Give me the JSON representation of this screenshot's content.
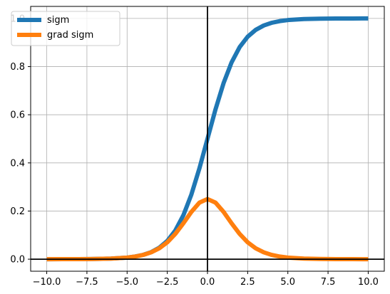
{
  "chart_data": {
    "type": "line",
    "title": "",
    "xlabel": "",
    "ylabel": "",
    "xlim": [
      -11,
      11
    ],
    "ylim": [
      -0.05,
      1.05
    ],
    "grid": true,
    "legend_position": "top-left",
    "x_ticks": [
      -10.0,
      -7.5,
      -5.0,
      -2.5,
      0.0,
      2.5,
      5.0,
      7.5,
      10.0
    ],
    "x_tick_labels": [
      "−10.0",
      "−7.5",
      "−5.0",
      "−2.5",
      "0.0",
      "2.5",
      "5.0",
      "7.5",
      "10.0"
    ],
    "y_ticks": [
      0.0,
      0.2,
      0.4,
      0.6,
      0.8,
      1.0
    ],
    "y_tick_labels": [
      "0.0",
      "0.2",
      "0.4",
      "0.6",
      "0.8",
      "1.0"
    ],
    "reference_lines": {
      "vertical_x": 0,
      "horizontal_y": 0,
      "color": "#000000"
    },
    "x": [
      -10.0,
      -9.0,
      -8.0,
      -7.0,
      -6.0,
      -5.0,
      -4.5,
      -4.0,
      -3.5,
      -3.0,
      -2.5,
      -2.0,
      -1.5,
      -1.0,
      -0.5,
      0.0,
      0.5,
      1.0,
      1.5,
      2.0,
      2.5,
      3.0,
      3.5,
      4.0,
      4.5,
      5.0,
      6.0,
      7.0,
      8.0,
      9.0,
      10.0
    ],
    "series": [
      {
        "name": "sigm",
        "color": "#1f77b4",
        "values": [
          0.0,
          0.0001,
          0.0003,
          0.0009,
          0.0025,
          0.0067,
          0.011,
          0.018,
          0.0293,
          0.0474,
          0.0759,
          0.1192,
          0.1824,
          0.2689,
          0.3775,
          0.5,
          0.6225,
          0.7311,
          0.8176,
          0.8808,
          0.9241,
          0.9526,
          0.9707,
          0.982,
          0.989,
          0.9933,
          0.9975,
          0.9991,
          0.9997,
          0.9999,
          1.0
        ]
      },
      {
        "name": "grad sigm",
        "color": "#ff7f0e",
        "values": [
          0.0,
          0.0001,
          0.0003,
          0.0009,
          0.0025,
          0.0066,
          0.0109,
          0.0177,
          0.0285,
          0.0452,
          0.0701,
          0.105,
          0.1491,
          0.1966,
          0.235,
          0.25,
          0.235,
          0.1966,
          0.1491,
          0.105,
          0.0701,
          0.0452,
          0.0285,
          0.0177,
          0.0109,
          0.0066,
          0.0025,
          0.0009,
          0.0003,
          0.0001,
          0.0
        ]
      }
    ]
  }
}
